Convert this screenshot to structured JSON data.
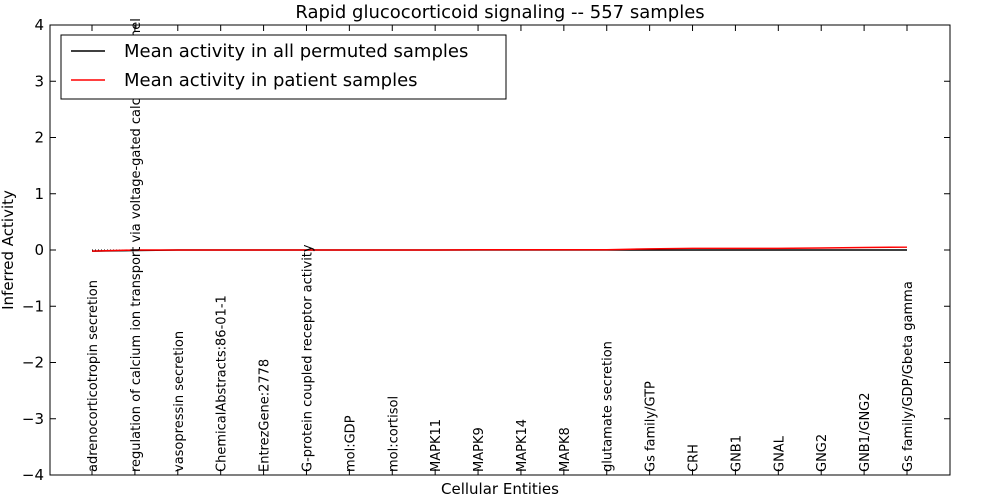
{
  "chart_data": {
    "type": "line",
    "title": "Rapid glucocorticoid signaling -- 557 samples",
    "xlabel": "Cellular Entities",
    "ylabel": "Inferred Activity",
    "ylim": [
      -4,
      4
    ],
    "yticks": [
      -4,
      -3,
      -2,
      -1,
      0,
      1,
      2,
      3,
      4
    ],
    "ytick_labels": [
      "−4",
      "−3",
      "−2",
      "−1",
      "0",
      "1",
      "2",
      "3",
      "4"
    ],
    "categories": [
      "adrenocorticotropin secretion",
      "regulation of calcium ion transport via voltage-gated calcium channel",
      "vasopressin secretion",
      "ChemicalAbstracts:86-01-1",
      "EntrezGene:2778",
      "G-protein coupled receptor activity",
      "mol:GDP",
      "mol:cortisol",
      "MAPK11",
      "MAPK9",
      "MAPK14",
      "MAPK8",
      "glutamate secretion",
      "Gs family/GTP",
      "CRH",
      "GNB1",
      "GNAL",
      "GNG2",
      "GNB1/GNG2",
      "Gs family/GDP/Gbeta gamma"
    ],
    "series": [
      {
        "name": "Mean activity in all permuted samples",
        "color": "#000000",
        "values": [
          -0.02,
          -0.01,
          0.0,
          0.0,
          0.0,
          0.0,
          0.0,
          0.0,
          0.0,
          0.0,
          0.0,
          0.0,
          0.0,
          0.0,
          0.0,
          0.0,
          0.0,
          0.0,
          0.0,
          0.0
        ]
      },
      {
        "name": "Mean activity in patient samples",
        "color": "#ff0000",
        "values": [
          -0.02,
          0.0,
          0.0,
          0.0,
          0.0,
          0.0,
          0.0,
          0.0,
          0.0,
          0.005,
          0.005,
          0.005,
          0.005,
          0.02,
          0.03,
          0.03,
          0.03,
          0.035,
          0.045,
          0.05
        ]
      }
    ],
    "legend_position": "top-left"
  }
}
